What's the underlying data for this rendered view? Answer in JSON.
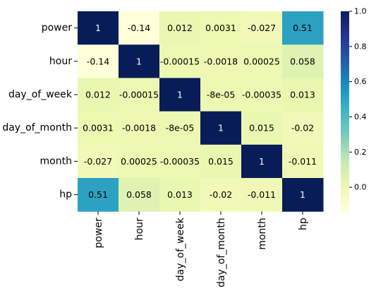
{
  "chart_data": {
    "type": "heatmap",
    "title": "",
    "xlabel": "",
    "ylabel": "",
    "row_labels": [
      "power",
      "hour",
      "day_of_week",
      "day_of_month",
      "month",
      "hp"
    ],
    "col_labels": [
      "power",
      "hour",
      "day_of_week",
      "day_of_month",
      "month",
      "hp"
    ],
    "values": [
      [
        1,
        -0.14,
        0.012,
        0.0031,
        -0.027,
        0.51
      ],
      [
        -0.14,
        1,
        -0.00015,
        -0.0018,
        0.00025,
        0.058
      ],
      [
        0.012,
        -0.00015,
        1,
        -8e-05,
        -0.00035,
        0.013
      ],
      [
        0.0031,
        -0.0018,
        -8e-05,
        1,
        0.015,
        -0.02
      ],
      [
        -0.027,
        0.00025,
        -0.00035,
        0.015,
        1,
        -0.011
      ],
      [
        0.51,
        0.058,
        0.013,
        -0.02,
        -0.011,
        1
      ]
    ],
    "annotations": [
      [
        "1",
        "-0.14",
        "0.012",
        "0.0031",
        "-0.027",
        "0.51"
      ],
      [
        "-0.14",
        "1",
        "-0.00015",
        "-0.0018",
        "0.00025",
        "0.058"
      ],
      [
        "0.012",
        "-0.00015",
        "1",
        "-8e-05",
        "-0.00035",
        "0.013"
      ],
      [
        "0.0031",
        "-0.0018",
        "-8e-05",
        "1",
        "0.015",
        "-0.02"
      ],
      [
        "-0.027",
        "0.00025",
        "-0.00035",
        "0.015",
        "1",
        "-0.011"
      ],
      [
        "0.51",
        "0.058",
        "0.013",
        "-0.02",
        "-0.011",
        "1"
      ]
    ],
    "colormap": "YlGnBu",
    "vmin": -0.14,
    "vmax": 1.0,
    "colorbar": {
      "ticks": [
        0.0,
        0.2,
        0.4,
        0.6,
        0.8,
        1.0
      ],
      "tick_labels": [
        "0.0",
        "0.2",
        "0.4",
        "0.6",
        "0.8",
        "1.0"
      ]
    },
    "grid": false
  }
}
